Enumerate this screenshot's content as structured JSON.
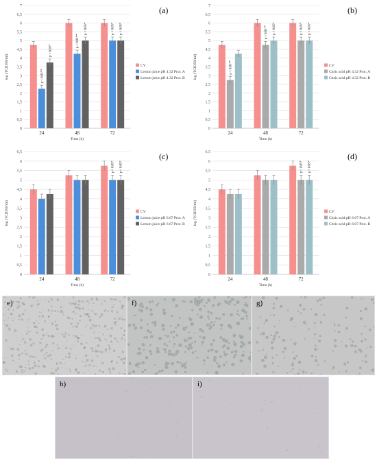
{
  "colors": {
    "cv": "#f5908f",
    "lemon_a": "#4b8fdc",
    "lemon_b": "#616161",
    "citric_a": "#aaaaaa",
    "citric_b": "#9dbfc8",
    "grid": "#dedede",
    "error_bar": "#888888"
  },
  "chart_data": [
    {
      "type": "bar",
      "panel_label": "(a)",
      "categories": [
        "24",
        "48",
        "72"
      ],
      "xlabel": "Time (h)",
      "ylabel": "log (TCID50/ml)",
      "ylim": [
        0,
        7
      ],
      "yticks": [
        "0",
        "0,5",
        "1",
        "1,5",
        "2",
        "2,5",
        "3",
        "3,5",
        "4",
        "4,5",
        "5",
        "5,5",
        "6",
        "6,5",
        "7"
      ],
      "grid": true,
      "legend_position": "right",
      "series": [
        {
          "name": "CV",
          "color_key": "cv",
          "values": [
            4.75,
            6.0,
            6.0
          ],
          "errors": [
            0.2,
            0.2,
            0.2
          ],
          "annotations": [
            "",
            "",
            ""
          ]
        },
        {
          "name": "Lemon juice pH 4.32 Prot. A",
          "color_key": "lemon_a",
          "values": [
            2.25,
            4.25,
            5.0
          ],
          "errors": [
            0.2,
            0.2,
            0.2
          ],
          "annotations": [
            "p < 0.01**",
            "p < 0.01**",
            "p < 0.05*"
          ]
        },
        {
          "name": "Lemon juice pH 4.32 Prot. B",
          "color_key": "lemon_b",
          "values": [
            3.75,
            5.0,
            5.0
          ],
          "errors": [
            0.2,
            0.2,
            0.2
          ],
          "annotations": [
            "p < 0.05*",
            "p < 0.05*",
            "p < 0.05*"
          ]
        }
      ]
    },
    {
      "type": "bar",
      "panel_label": "(b)",
      "categories": [
        "24",
        "48",
        "72"
      ],
      "xlabel": "Time (h)",
      "ylabel": "log (TCID50/ml)",
      "ylim": [
        0,
        7
      ],
      "yticks": [
        "0",
        "0,5",
        "1",
        "1,5",
        "2",
        "2,5",
        "3",
        "3,5",
        "4",
        "4,5",
        "5",
        "5,5",
        "6",
        "6,5",
        "7"
      ],
      "grid": true,
      "legend_position": "right",
      "series": [
        {
          "name": "CV",
          "color_key": "cv",
          "values": [
            4.75,
            6.0,
            6.0
          ],
          "errors": [
            0.2,
            0.2,
            0.2
          ],
          "annotations": [
            "",
            "",
            ""
          ]
        },
        {
          "name": "Citric acid pH 4.32 Prot. A",
          "color_key": "citric_a",
          "values": [
            2.75,
            4.75,
            5.0
          ],
          "errors": [
            0.2,
            0.2,
            0.2
          ],
          "annotations": [
            "p < 0.01**",
            "p < 0.01**",
            "p < 0.05*"
          ]
        },
        {
          "name": "Citric acid pH 4.32 Prot. B",
          "color_key": "citric_b",
          "values": [
            4.25,
            5.0,
            5.0
          ],
          "errors": [
            0.2,
            0.2,
            0.2
          ],
          "annotations": [
            "",
            "p < 0.05*",
            "p < 0.05*"
          ]
        }
      ]
    },
    {
      "type": "bar",
      "panel_label": "(c)",
      "categories": [
        "24",
        "48",
        "72"
      ],
      "xlabel": "Time (h)",
      "ylabel": "log (TCID50/ml)",
      "ylim": [
        0,
        6.5
      ],
      "yticks": [
        "0",
        "0,5",
        "1",
        "1,5",
        "2",
        "2,5",
        "3",
        "3,5",
        "4",
        "4,5",
        "5",
        "5,5",
        "6",
        "6,5"
      ],
      "grid": true,
      "legend_position": "right",
      "series": [
        {
          "name": "CV",
          "color_key": "cv",
          "values": [
            4.5,
            5.25,
            5.75
          ],
          "errors": [
            0.25,
            0.25,
            0.25
          ],
          "annotations": [
            "",
            "",
            ""
          ]
        },
        {
          "name": "Lemon juice pH 6.67 Prot. A",
          "color_key": "lemon_a",
          "values": [
            4.0,
            5.0,
            5.0
          ],
          "errors": [
            0.25,
            0.25,
            0.25
          ],
          "annotations": [
            "",
            "",
            "p < 0.05*"
          ]
        },
        {
          "name": "Lemon juice pH 6.67 Prot. B",
          "color_key": "lemon_b",
          "values": [
            4.25,
            5.0,
            5.0
          ],
          "errors": [
            0.25,
            0.25,
            0.25
          ],
          "annotations": [
            "",
            "",
            "p < 0.05*"
          ]
        }
      ]
    },
    {
      "type": "bar",
      "panel_label": "(d)",
      "categories": [
        "24",
        "48",
        "72"
      ],
      "xlabel": "Time (h)",
      "ylabel": "log (TCID50/ml)",
      "ylim": [
        0,
        6.5
      ],
      "yticks": [
        "0",
        "0,5",
        "1",
        "1,5",
        "2",
        "2,5",
        "3",
        "3,5",
        "4",
        "4,5",
        "5",
        "5,5",
        "6",
        "6,5"
      ],
      "grid": true,
      "legend_position": "right",
      "series": [
        {
          "name": "CV",
          "color_key": "cv",
          "values": [
            4.5,
            5.25,
            5.75
          ],
          "errors": [
            0.25,
            0.25,
            0.25
          ],
          "annotations": [
            "",
            "",
            ""
          ]
        },
        {
          "name": "Citric acid pH 6.67 Prot. A",
          "color_key": "citric_a",
          "values": [
            4.25,
            5.0,
            5.0
          ],
          "errors": [
            0.25,
            0.25,
            0.25
          ],
          "annotations": [
            "",
            "",
            "p < 0.05*"
          ]
        },
        {
          "name": "Citric acid pH 6.67 Prot. B",
          "color_key": "citric_b",
          "values": [
            4.25,
            5.0,
            5.0
          ],
          "errors": [
            0.25,
            0.25,
            0.25
          ],
          "annotations": [
            "",
            "",
            "p < 0.05*"
          ]
        }
      ]
    }
  ],
  "micrographs": [
    {
      "id": "e",
      "label": "e)",
      "color": "#cfcfcf",
      "texture": "dense"
    },
    {
      "id": "f",
      "label": "f)",
      "color": "#c2c4c3",
      "texture": "clusters"
    },
    {
      "id": "g",
      "label": "g)",
      "color": "#c6c7c6",
      "texture": "sparse"
    },
    {
      "id": "h",
      "label": "h)",
      "color": "#c6c1c9",
      "texture": "faint"
    },
    {
      "id": "i",
      "label": "i)",
      "color": "#c9c3cc",
      "texture": "faint"
    }
  ]
}
